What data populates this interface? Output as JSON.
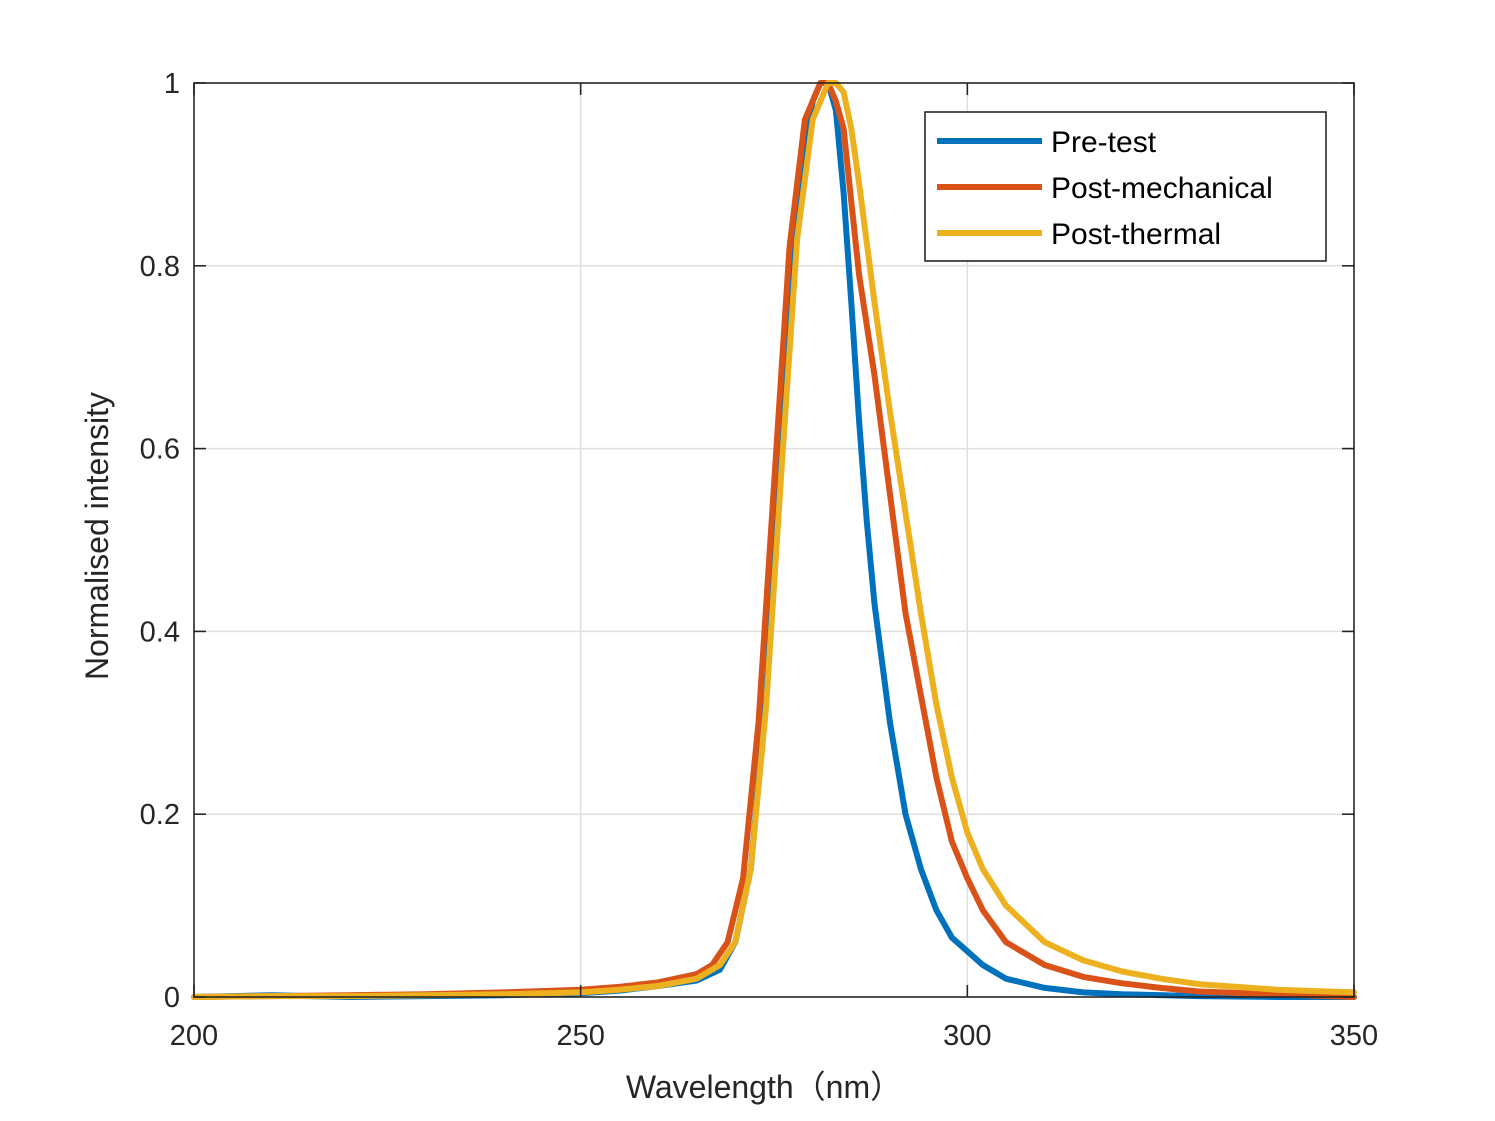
{
  "chart_data": {
    "type": "line",
    "title": "",
    "xlabel": "Wavelength（nm）",
    "ylabel": "Normalised intensity",
    "xlim": [
      200,
      350
    ],
    "ylim": [
      0,
      1
    ],
    "xticks": [
      200,
      250,
      300,
      350
    ],
    "xtick_labels": [
      "200",
      "250",
      "300",
      "350"
    ],
    "yticks": [
      0,
      0.2,
      0.4,
      0.6,
      0.8,
      1
    ],
    "ytick_labels": [
      "0",
      "0.2",
      "0.4",
      "0.6",
      "0.8",
      "1"
    ],
    "grid": true,
    "legend_position": "top-right",
    "series": [
      {
        "name": "Pre-test",
        "color": "#0072BD",
        "x": [
          200,
          210,
          220,
          230,
          240,
          250,
          255,
          260,
          265,
          268,
          270,
          272,
          274,
          276,
          278,
          280,
          281,
          282,
          283,
          284,
          285,
          286,
          287,
          288,
          290,
          292,
          294,
          296,
          298,
          300,
          302,
          305,
          310,
          315,
          320,
          330,
          340,
          350
        ],
        "y": [
          0.0,
          0.002,
          0.0,
          0.001,
          0.002,
          0.004,
          0.007,
          0.012,
          0.018,
          0.03,
          0.06,
          0.14,
          0.33,
          0.6,
          0.87,
          0.98,
          1.0,
          1.0,
          0.97,
          0.88,
          0.76,
          0.63,
          0.52,
          0.43,
          0.3,
          0.2,
          0.14,
          0.095,
          0.065,
          0.05,
          0.035,
          0.02,
          0.01,
          0.005,
          0.003,
          0.001,
          0.0,
          0.0
        ]
      },
      {
        "name": "Post-mechanical",
        "color": "#D95319",
        "x": [
          200,
          210,
          220,
          230,
          240,
          250,
          255,
          260,
          265,
          267,
          269,
          271,
          273,
          275,
          277,
          279,
          281,
          282,
          283,
          284,
          285,
          286,
          288,
          290,
          292,
          294,
          296,
          298,
          300,
          302,
          305,
          310,
          315,
          320,
          325,
          330,
          340,
          350
        ],
        "y": [
          0.0,
          0.001,
          0.002,
          0.003,
          0.005,
          0.008,
          0.011,
          0.016,
          0.025,
          0.035,
          0.06,
          0.13,
          0.3,
          0.56,
          0.82,
          0.96,
          1.0,
          1.0,
          0.98,
          0.95,
          0.87,
          0.79,
          0.68,
          0.55,
          0.42,
          0.33,
          0.24,
          0.17,
          0.13,
          0.095,
          0.06,
          0.035,
          0.022,
          0.015,
          0.01,
          0.006,
          0.003,
          0.0
        ]
      },
      {
        "name": "Post-thermal",
        "color": "#EDB120",
        "x": [
          200,
          210,
          220,
          230,
          240,
          250,
          255,
          260,
          265,
          268,
          270,
          272,
          274,
          276,
          278,
          280,
          282,
          283,
          284,
          285,
          286,
          288,
          290,
          292,
          294,
          296,
          298,
          300,
          302,
          305,
          310,
          315,
          320,
          325,
          330,
          340,
          350
        ],
        "y": [
          0.0,
          0.001,
          0.001,
          0.002,
          0.003,
          0.005,
          0.008,
          0.012,
          0.02,
          0.035,
          0.06,
          0.14,
          0.32,
          0.58,
          0.83,
          0.96,
          1.0,
          1.0,
          0.99,
          0.95,
          0.89,
          0.76,
          0.64,
          0.53,
          0.42,
          0.32,
          0.24,
          0.18,
          0.14,
          0.1,
          0.06,
          0.04,
          0.028,
          0.02,
          0.014,
          0.008,
          0.005
        ]
      }
    ]
  }
}
